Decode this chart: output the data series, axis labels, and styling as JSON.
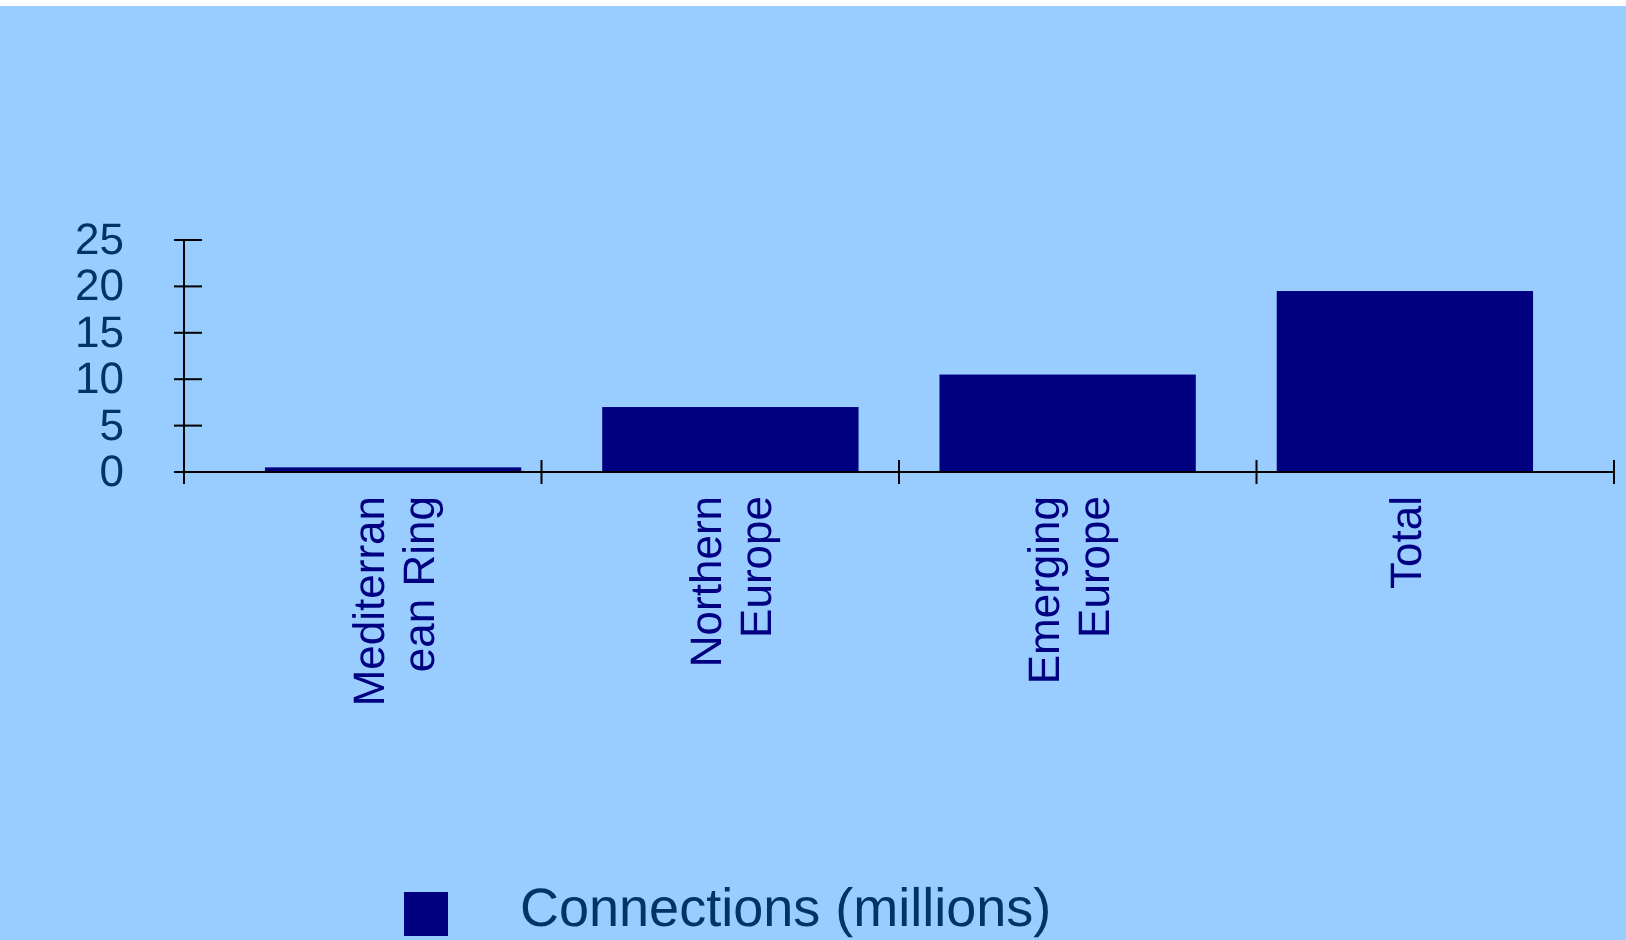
{
  "chart_data": {
    "type": "bar",
    "categories": [
      "Mediterranean Ring",
      "Northern Europe",
      "Emerging Europe",
      "Total"
    ],
    "series": [
      {
        "name": "Connections (millions)",
        "color": "#000080",
        "values": [
          0.5,
          7,
          10.5,
          19.5
        ]
      }
    ],
    "ylim": [
      0,
      25
    ],
    "yticks": [
      0,
      5,
      10,
      15,
      20,
      25
    ],
    "grid": false,
    "legend": "bottom"
  }
}
